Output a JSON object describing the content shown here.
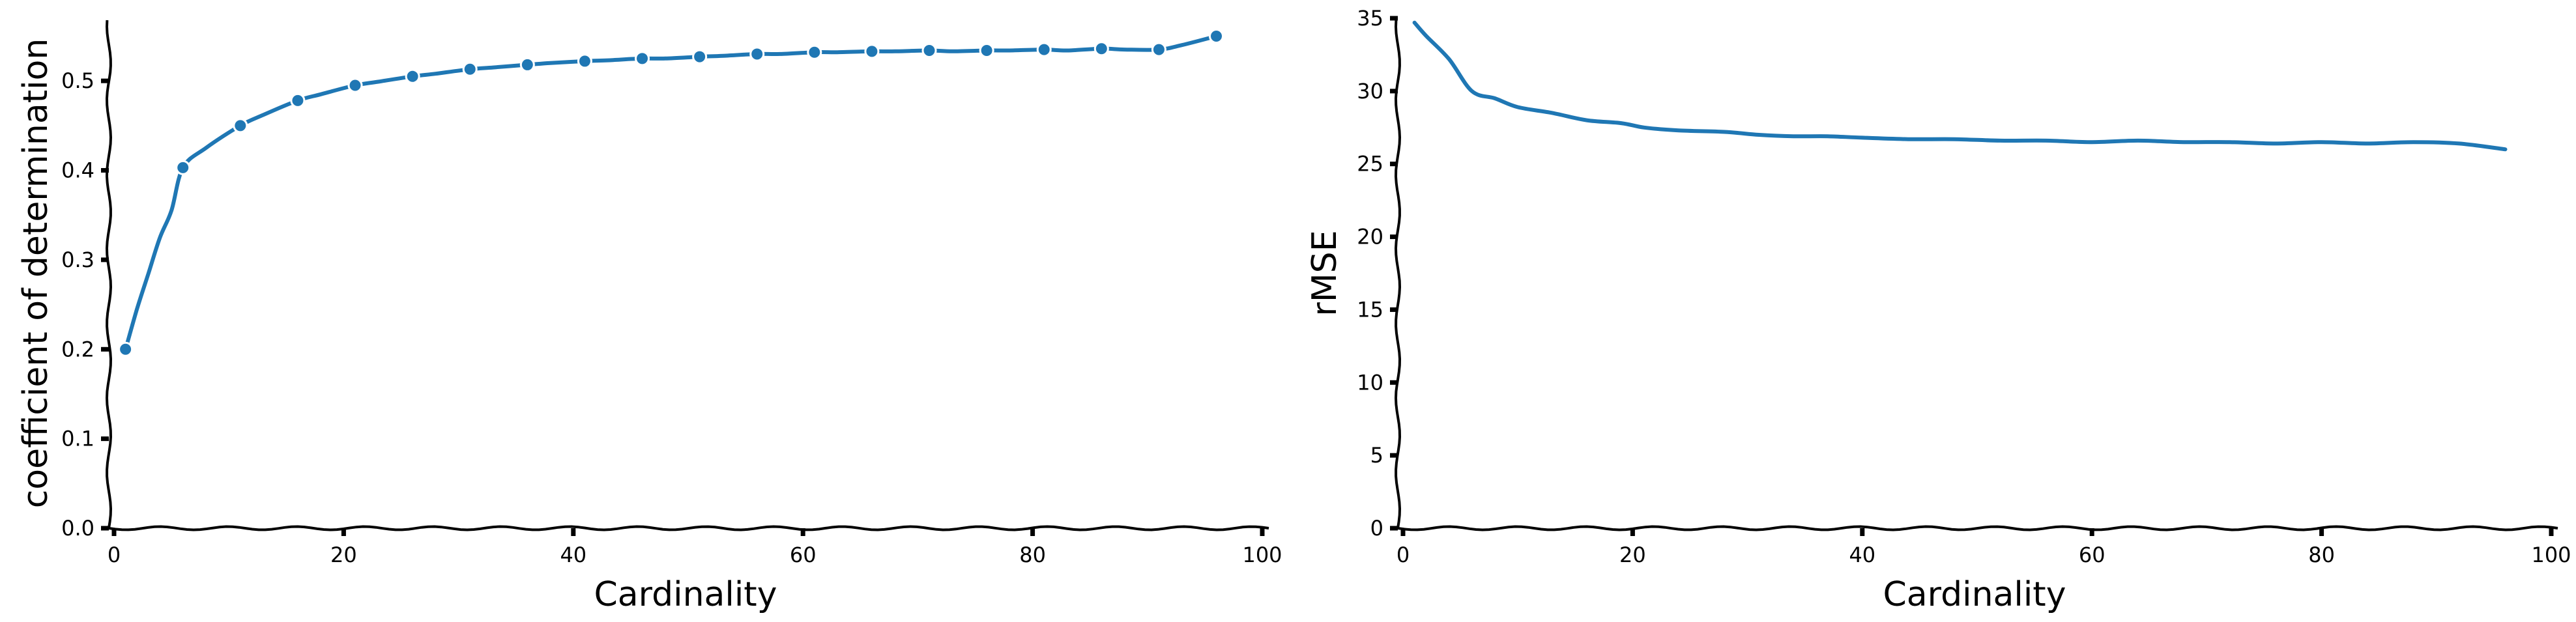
{
  "chart_data": [
    {
      "type": "line",
      "xlabel": "Cardinality",
      "ylabel": "coefficient of determination",
      "xlim": [
        0,
        100
      ],
      "ylim": [
        0,
        0.57
      ],
      "xticks": [
        "0",
        "20",
        "40",
        "60",
        "80",
        "100"
      ],
      "yticks": [
        "0.0",
        "0.1",
        "0.2",
        "0.3",
        "0.4",
        "0.5"
      ],
      "grid": false,
      "markers": true,
      "color": "#1f77b4",
      "series": [
        {
          "x": [
            1,
            2,
            3,
            4,
            5,
            6,
            8,
            11,
            13,
            16,
            18,
            21,
            23,
            26,
            28,
            31,
            33,
            36,
            38,
            41,
            43,
            46,
            48,
            51,
            53,
            56,
            58,
            61,
            63,
            66,
            68,
            71,
            73,
            76,
            78,
            81,
            83,
            86,
            88,
            91,
            93,
            96
          ],
          "y": [
            0.2,
            0.245,
            0.285,
            0.325,
            0.355,
            0.403,
            0.425,
            0.45,
            0.462,
            0.478,
            0.485,
            0.495,
            0.499,
            0.505,
            0.508,
            0.513,
            0.515,
            0.518,
            0.52,
            0.522,
            0.523,
            0.525,
            0.525,
            0.527,
            0.528,
            0.53,
            0.53,
            0.532,
            0.532,
            0.533,
            0.533,
            0.534,
            0.533,
            0.534,
            0.534,
            0.535,
            0.534,
            0.536,
            0.535,
            0.535,
            0.54,
            0.55
          ]
        }
      ]
    },
    {
      "type": "line",
      "xlabel": "Cardinality",
      "ylabel": "rMSE",
      "xlim": [
        0,
        100
      ],
      "ylim": [
        0,
        35
      ],
      "xticks": [
        "0",
        "20",
        "40",
        "60",
        "80",
        "100"
      ],
      "yticks": [
        "0",
        "5",
        "10",
        "15",
        "20",
        "25",
        "30",
        "35"
      ],
      "grid": false,
      "markers": false,
      "color": "#1f77b4",
      "series": [
        {
          "x": [
            1,
            2,
            4,
            6,
            8,
            10,
            13,
            16,
            19,
            21,
            24,
            28,
            31,
            34,
            37,
            40,
            44,
            48,
            52,
            56,
            60,
            64,
            68,
            72,
            76,
            80,
            84,
            88,
            92,
            96
          ],
          "y": [
            34.7,
            33.8,
            32.2,
            30.0,
            29.5,
            28.9,
            28.5,
            28.0,
            27.8,
            27.5,
            27.3,
            27.2,
            27.0,
            26.9,
            26.9,
            26.8,
            26.7,
            26.7,
            26.6,
            26.6,
            26.5,
            26.6,
            26.5,
            26.5,
            26.4,
            26.5,
            26.4,
            26.5,
            26.4,
            26.0
          ]
        }
      ]
    }
  ]
}
